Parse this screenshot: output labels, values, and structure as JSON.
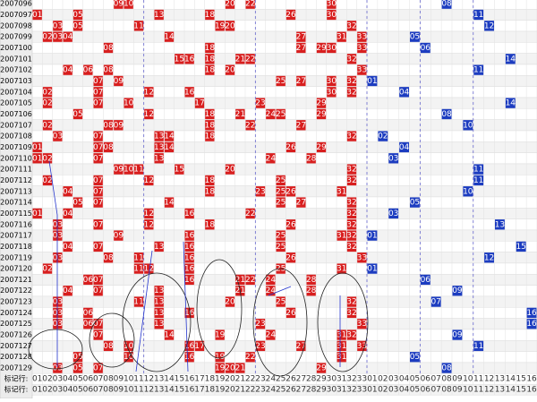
{
  "rows": [
    {
      "issue": "2007096",
      "red": [
        "09",
        "10",
        "20",
        "22",
        "30"
      ],
      "blue": [
        "08"
      ]
    },
    {
      "issue": "2007097",
      "red": [
        "01",
        "05",
        "13",
        "18",
        "26",
        "30"
      ],
      "blue": [
        "11"
      ]
    },
    {
      "issue": "2007098",
      "red": [
        "03",
        "05",
        "11",
        "19",
        "20",
        "32"
      ],
      "blue": [
        "12"
      ]
    },
    {
      "issue": "2007099",
      "red": [
        "02",
        "03",
        "04",
        "14",
        "27",
        "31",
        "33"
      ],
      "blue": [
        "05"
      ]
    },
    {
      "issue": "2007100",
      "red": [
        "08",
        "18",
        "27",
        "29",
        "30",
        "33"
      ],
      "blue": [
        "06"
      ]
    },
    {
      "issue": "2007101",
      "red": [
        "15",
        "16",
        "18",
        "21",
        "22",
        "32"
      ],
      "blue": [
        "14"
      ]
    },
    {
      "issue": "2007102",
      "red": [
        "04",
        "06",
        "08",
        "18",
        "20",
        "33"
      ],
      "blue": [
        "11"
      ]
    },
    {
      "issue": "2007103",
      "red": [
        "07",
        "09",
        "25",
        "27",
        "30",
        "32"
      ],
      "blue": [
        "01"
      ]
    },
    {
      "issue": "2007104",
      "red": [
        "02",
        "07",
        "12",
        "16",
        "30",
        "32"
      ],
      "blue": [
        "04"
      ]
    },
    {
      "issue": "2007105",
      "red": [
        "02",
        "07",
        "10",
        "17",
        "23",
        "29"
      ],
      "blue": [
        "14"
      ]
    },
    {
      "issue": "2007106",
      "red": [
        "05",
        "12",
        "18",
        "21",
        "24",
        "25",
        "29"
      ],
      "blue": [
        "08"
      ]
    },
    {
      "issue": "2007107",
      "red": [
        "02",
        "08",
        "09",
        "18",
        "22",
        "27"
      ],
      "blue": [
        "10"
      ]
    },
    {
      "issue": "2007108",
      "red": [
        "03",
        "07",
        "13",
        "14",
        "18",
        "32"
      ],
      "blue": [
        "02"
      ]
    },
    {
      "issue": "2007109",
      "red": [
        "01",
        "07",
        "08",
        "13",
        "14",
        "26",
        "29"
      ],
      "blue": [
        "04"
      ]
    },
    {
      "issue": "2007110",
      "red": [
        "01",
        "02",
        "07",
        "13",
        "24",
        "28"
      ],
      "blue": [
        "03"
      ]
    },
    {
      "issue": "2007111",
      "red": [
        "09",
        "10",
        "11",
        "15",
        "20",
        "32"
      ],
      "blue": [
        "11"
      ]
    },
    {
      "issue": "2007112",
      "red": [
        "02",
        "07",
        "12",
        "18",
        "25",
        "32"
      ],
      "blue": [
        "11"
      ]
    },
    {
      "issue": "2007113",
      "red": [
        "04",
        "07",
        "18",
        "23",
        "25",
        "26",
        "31"
      ],
      "blue": [
        "10"
      ]
    },
    {
      "issue": "2007114",
      "red": [
        "05",
        "07",
        "14",
        "25",
        "27",
        "32"
      ],
      "blue": [
        "05"
      ]
    },
    {
      "issue": "2007115",
      "red": [
        "01",
        "04",
        "12",
        "16",
        "22",
        "32"
      ],
      "blue": [
        "03"
      ]
    },
    {
      "issue": "2007116",
      "red": [
        "03",
        "07",
        "12",
        "18",
        "26",
        "32"
      ],
      "blue": [
        "13"
      ]
    },
    {
      "issue": "2007117",
      "red": [
        "03",
        "09",
        "16",
        "25",
        "31",
        "32"
      ],
      "blue": [
        "01"
      ]
    },
    {
      "issue": "2007118",
      "red": [
        "04",
        "07",
        "13",
        "16",
        "25",
        "32"
      ],
      "blue": [
        "15"
      ]
    },
    {
      "issue": "2007119",
      "red": [
        "03",
        "08",
        "11",
        "16",
        "26",
        "33"
      ],
      "blue": [
        "12"
      ]
    },
    {
      "issue": "2007120",
      "red": [
        "02",
        "11",
        "12",
        "16",
        "25",
        "31"
      ],
      "blue": [
        "01"
      ]
    },
    {
      "issue": "2007121",
      "red": [
        "06",
        "07",
        "16",
        "21",
        "22",
        "24",
        "28"
      ],
      "blue": [
        "06"
      ]
    },
    {
      "issue": "2007122",
      "red": [
        "04",
        "07",
        "13",
        "21",
        "24",
        "28"
      ],
      "blue": [
        "09"
      ]
    },
    {
      "issue": "2007123",
      "red": [
        "03",
        "11",
        "13",
        "20",
        "25",
        "32"
      ],
      "blue": [
        "07"
      ]
    },
    {
      "issue": "2007124",
      "red": [
        "03",
        "06",
        "13",
        "16",
        "26",
        "32"
      ],
      "blue": [
        "16"
      ]
    },
    {
      "issue": "2007125",
      "red": [
        "03",
        "06",
        "07",
        "13",
        "23",
        "33"
      ],
      "blue": [
        "16"
      ]
    },
    {
      "issue": "2007126",
      "red": [
        "07",
        "14",
        "19",
        "24",
        "31",
        "32"
      ],
      "blue": [
        "09"
      ]
    },
    {
      "issue": "2007127",
      "red": [
        "08",
        "10",
        "16",
        "17",
        "23",
        "27",
        "31",
        "33"
      ],
      "blue": [
        "11"
      ]
    },
    {
      "issue": "2007128",
      "red": [
        "05",
        "10",
        "16",
        "19",
        "22",
        "31"
      ],
      "blue": [
        "05"
      ]
    },
    {
      "issue": "2007129",
      "red": [
        "03",
        "05",
        "07",
        "19",
        "20",
        "21",
        "29"
      ],
      "blue": [
        "08"
      ]
    }
  ],
  "footer_label": "标记行:",
  "red_headers": [
    "01",
    "02",
    "03",
    "04",
    "05",
    "06",
    "07",
    "08",
    "09",
    "10",
    "11",
    "12",
    "13",
    "14",
    "15",
    "16",
    "17",
    "18",
    "19",
    "20",
    "21",
    "22",
    "23",
    "24",
    "25",
    "26",
    "27",
    "28",
    "29",
    "30",
    "31",
    "32",
    "33"
  ],
  "blue_headers": [
    "01",
    "02",
    "03",
    "04",
    "05",
    "06",
    "07",
    "08",
    "09",
    "10",
    "11",
    "12",
    "13",
    "14",
    "15",
    "16"
  ]
}
